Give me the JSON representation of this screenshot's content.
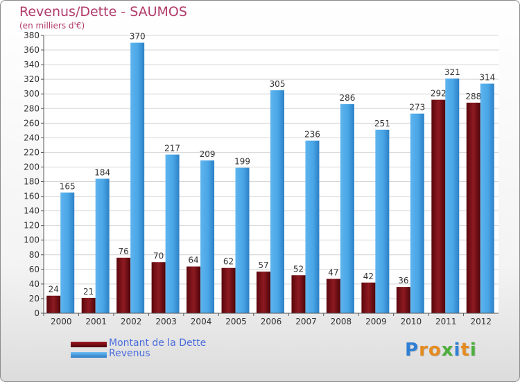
{
  "chart_data": {
    "type": "bar",
    "title": "Revenus/Dette - SAUMOS",
    "subtitle": "(en milliers d'€)",
    "categories": [
      "2000",
      "2001",
      "2002",
      "2003",
      "2004",
      "2005",
      "2006",
      "2007",
      "2008",
      "2009",
      "2010",
      "2011",
      "2012"
    ],
    "series": [
      {
        "name": "Montant de la Dette",
        "color": "#6e0c12",
        "values": [
          24,
          21,
          76,
          70,
          64,
          62,
          57,
          52,
          47,
          42,
          36,
          292,
          288
        ]
      },
      {
        "name": "Revenus",
        "color": "#3a98de",
        "values": [
          165,
          184,
          370,
          217,
          209,
          199,
          305,
          236,
          286,
          251,
          273,
          321,
          314
        ]
      }
    ],
    "ylim": [
      0,
      380
    ],
    "ytick_step": 20,
    "grid": true,
    "legend_position": "bottom-left"
  },
  "logo": {
    "letters": [
      {
        "char": "P",
        "color": "#2f7fd4"
      },
      {
        "char": "r",
        "color": "#e58b1f"
      },
      {
        "char": "o",
        "color": "#e58b1f"
      },
      {
        "char": "x",
        "color": "#4cae3c"
      },
      {
        "char": "i",
        "color": "#2f7fd4"
      },
      {
        "char": "t",
        "color": "#e58b1f"
      },
      {
        "char": "i",
        "color": "#4cae3c"
      }
    ]
  }
}
